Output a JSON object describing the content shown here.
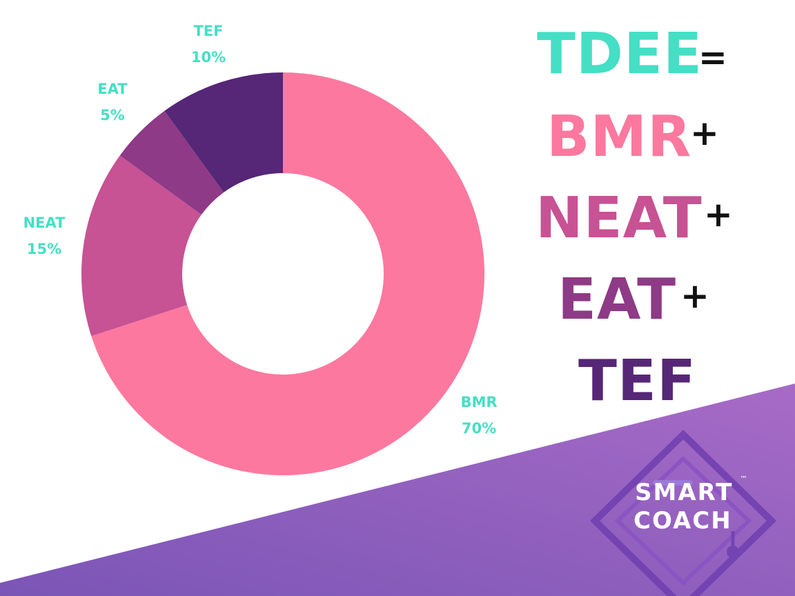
{
  "chart_data": {
    "type": "pie",
    "donut": true,
    "slices": [
      {
        "label": "BMR",
        "value": 70,
        "value_label": "70%",
        "color": "#fc789f"
      },
      {
        "label": "NEAT",
        "value": 15,
        "value_label": "15%",
        "color": "#c75294"
      },
      {
        "label": "EAT",
        "value": 5,
        "value_label": "5%",
        "color": "#8e3a86"
      },
      {
        "label": "TEF",
        "value": 10,
        "value_label": "10%",
        "color": "#562677"
      }
    ],
    "label_color": "#45dfc5"
  },
  "formula": {
    "terms": [
      {
        "text": "TDEE",
        "op": "=",
        "color": "#45dfc5"
      },
      {
        "text": "BMR",
        "op": "+",
        "color": "#fc789f"
      },
      {
        "text": "NEAT",
        "op": "+",
        "color": "#c75294"
      },
      {
        "text": "EAT",
        "op": "+",
        "color": "#8e3a86"
      },
      {
        "text": "TEF",
        "op": "",
        "color": "#562677"
      }
    ]
  },
  "logo": {
    "line1": "SMART",
    "line2": "COACH",
    "tm": "™"
  },
  "colors": {
    "band_start": "#7b55b6",
    "band_end": "#a76bc6"
  }
}
